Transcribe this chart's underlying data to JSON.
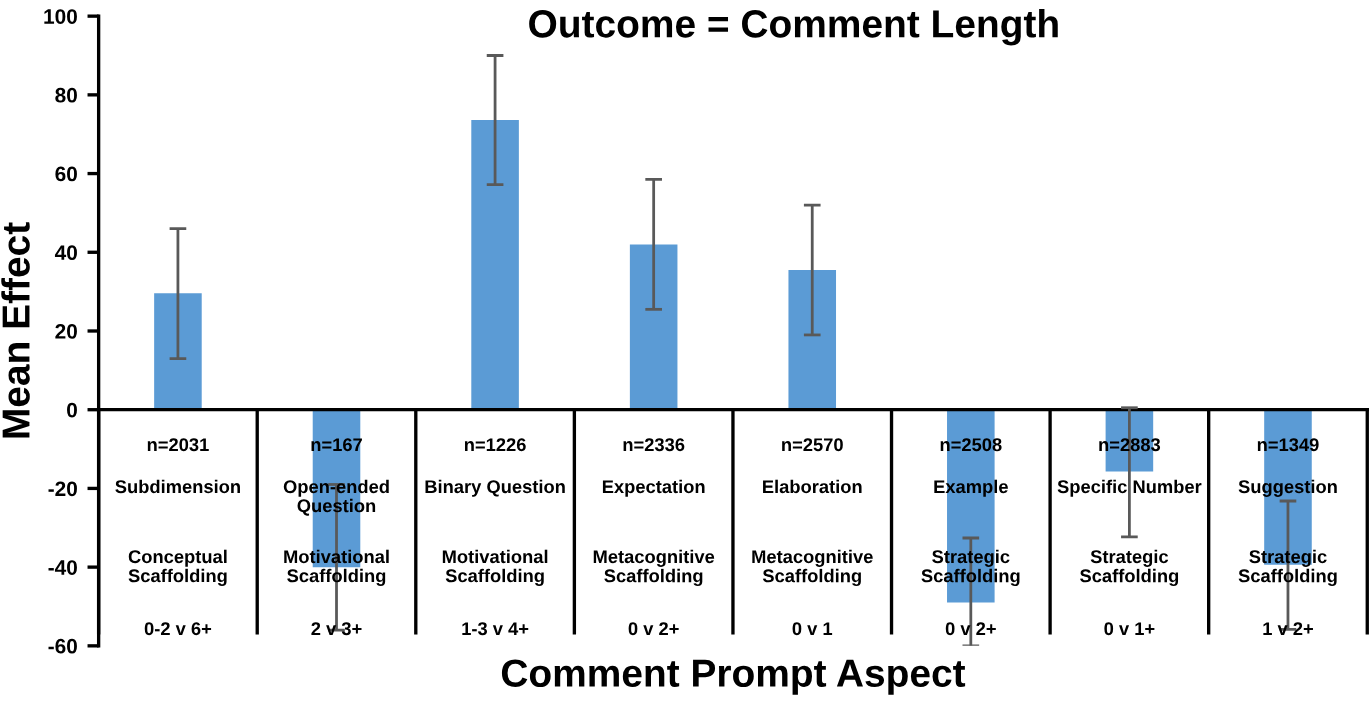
{
  "chart_data": {
    "type": "bar",
    "title": "Outcome = Comment Length",
    "xlabel": "Comment Prompt Aspect",
    "ylabel": "Mean Effect",
    "categories": [
      "n=2031\n\nSubdimension\n\nConceptual\nScaffolding\n\n0-2 v 6+",
      "n=167\n\nOpen-ended\nQuestion\n\nMotivational\nScaffolding\n\n2 v 3+",
      "n=1226\n\nBinary Question\n\nMotivational\nScaffolding\n\n1-3 v 4+",
      "n=2336\n\nExpectation\n\nMetacognitive\nScaffolding\n\n0 v 2+",
      "n=2570\n\nElaboration\n\nMetacognitive\nScaffolding\n\n0 v 1",
      "n=2508\n\nExample\n\nStrategic\nScaffolding\n\n0 v 2+",
      "n=2883\n\nSpecific Number\n\nStrategic\nScaffolding\n\n0 v 1+",
      "n=1349\n\nSuggestion\n\nStrategic\nScaffolding\n\n1 v 2+"
    ],
    "values": [
      29.6,
      -40,
      73.6,
      42,
      35.5,
      -49,
      -15.7,
      -39.4
    ],
    "errors": [
      [
        13,
        46
      ],
      [
        -19,
        -56
      ],
      [
        57.2,
        90
      ],
      [
        25.5,
        58.5
      ],
      [
        19,
        52
      ],
      [
        -32.6,
        -60
      ],
      [
        0.5,
        -32.3
      ],
      [
        -23.2,
        -55.8
      ]
    ],
    "color": "#5b9bd5",
    "ylim": [
      -60,
      100
    ],
    "yticks": [
      -60,
      -40,
      -20,
      0,
      20,
      40,
      60,
      80,
      100
    ]
  }
}
